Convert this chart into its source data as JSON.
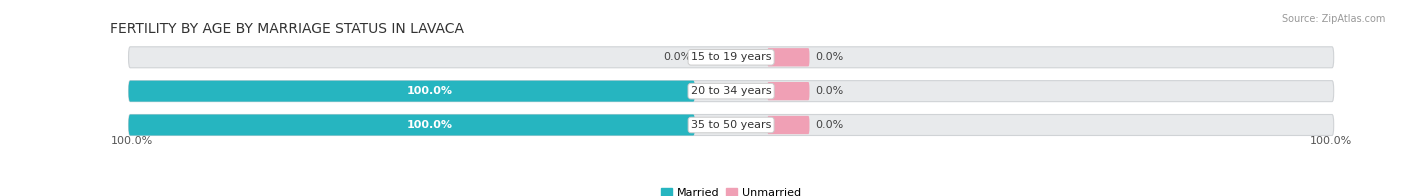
{
  "title": "FERTILITY BY AGE BY MARRIAGE STATUS IN LAVACA",
  "source": "Source: ZipAtlas.com",
  "categories": [
    "15 to 19 years",
    "20 to 34 years",
    "35 to 50 years"
  ],
  "married_values": [
    0.0,
    100.0,
    100.0
  ],
  "unmarried_values": [
    0.0,
    0.0,
    0.0
  ],
  "married_color": "#26b5c0",
  "unmarried_color": "#f0a0b5",
  "bar_bg_color": "#e8eaec",
  "bar_border_color": "#d0d3d6",
  "title_fontsize": 10,
  "label_fontsize": 8,
  "source_fontsize": 7,
  "tick_fontsize": 8,
  "bar_height": 0.62,
  "x_left_label": "100.0%",
  "x_right_label": "100.0%",
  "center_label_small": "0.0%",
  "legend_married": "Married",
  "legend_unmarried": "Unmarried"
}
